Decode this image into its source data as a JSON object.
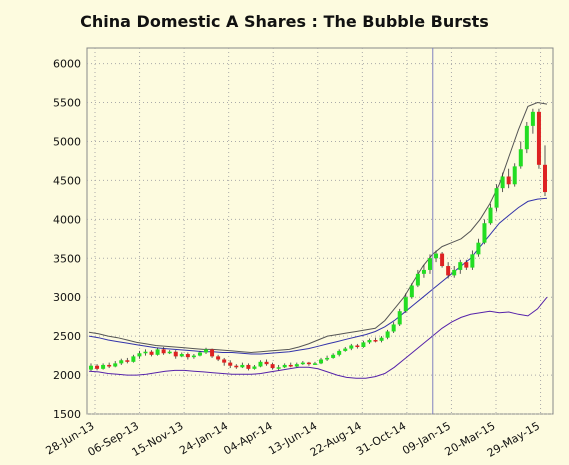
{
  "chart_data": {
    "type": "candlestick",
    "title": "China Domestic A Shares : The Bubble Bursts",
    "xlabel": "",
    "ylabel": "",
    "ylim": [
      1500,
      6200
    ],
    "yticks": [
      1500,
      2000,
      2500,
      3000,
      3500,
      4000,
      4500,
      5000,
      5500,
      6000
    ],
    "xticks": [
      "28-Jun-13",
      "06-Sep-13",
      "15-Nov-13",
      "24-Jan-14",
      "04-Apr-14",
      "13-Jun-14",
      "22-Aug-14",
      "31-Oct-14",
      "09-Jan-15",
      "20-Mar-15",
      "29-May-15"
    ],
    "grid": true,
    "annotation": "vertical line at ~01-Jan-15",
    "colors": {
      "up": "#22dd22",
      "down": "#dd2222",
      "band": "#555555",
      "average": "#3333aa",
      "lower": "#5522aa",
      "marker": "#8080c0"
    },
    "candles_weekly": [
      [
        2070,
        2120,
        2050,
        2150
      ],
      [
        2120,
        2080,
        2060,
        2140
      ],
      [
        2080,
        2130,
        2070,
        2150
      ],
      [
        2130,
        2110,
        2090,
        2160
      ],
      [
        2110,
        2150,
        2100,
        2180
      ],
      [
        2150,
        2190,
        2130,
        2210
      ],
      [
        2190,
        2170,
        2150,
        2220
      ],
      [
        2170,
        2240,
        2160,
        2260
      ],
      [
        2240,
        2280,
        2210,
        2310
      ],
      [
        2280,
        2300,
        2250,
        2330
      ],
      [
        2300,
        2260,
        2240,
        2320
      ],
      [
        2260,
        2330,
        2250,
        2350
      ],
      [
        2330,
        2280,
        2260,
        2360
      ],
      [
        2280,
        2300,
        2270,
        2320
      ],
      [
        2300,
        2240,
        2210,
        2320
      ],
      [
        2240,
        2270,
        2230,
        2290
      ],
      [
        2270,
        2230,
        2200,
        2290
      ],
      [
        2230,
        2250,
        2210,
        2270
      ],
      [
        2250,
        2290,
        2240,
        2310
      ],
      [
        2290,
        2330,
        2270,
        2350
      ],
      [
        2330,
        2240,
        2220,
        2340
      ],
      [
        2240,
        2200,
        2180,
        2260
      ],
      [
        2200,
        2160,
        2120,
        2220
      ],
      [
        2160,
        2120,
        2090,
        2190
      ],
      [
        2120,
        2100,
        2080,
        2140
      ],
      [
        2100,
        2130,
        2090,
        2160
      ],
      [
        2130,
        2080,
        2060,
        2150
      ],
      [
        2080,
        2110,
        2070,
        2130
      ],
      [
        2110,
        2170,
        2100,
        2190
      ],
      [
        2170,
        2140,
        2120,
        2200
      ],
      [
        2140,
        2090,
        2070,
        2160
      ],
      [
        2090,
        2100,
        2060,
        2130
      ],
      [
        2100,
        2130,
        2090,
        2150
      ],
      [
        2130,
        2110,
        2100,
        2160
      ],
      [
        2110,
        2140,
        2100,
        2160
      ],
      [
        2140,
        2160,
        2130,
        2180
      ],
      [
        2160,
        2140,
        2120,
        2170
      ],
      [
        2140,
        2150,
        2130,
        2170
      ],
      [
        2150,
        2200,
        2140,
        2220
      ],
      [
        2200,
        2220,
        2180,
        2250
      ],
      [
        2220,
        2260,
        2210,
        2280
      ],
      [
        2260,
        2310,
        2240,
        2330
      ],
      [
        2310,
        2340,
        2300,
        2360
      ],
      [
        2340,
        2380,
        2320,
        2400
      ],
      [
        2380,
        2360,
        2340,
        2400
      ],
      [
        2360,
        2420,
        2350,
        2440
      ],
      [
        2420,
        2450,
        2400,
        2470
      ],
      [
        2450,
        2440,
        2420,
        2480
      ],
      [
        2440,
        2480,
        2420,
        2500
      ],
      [
        2480,
        2560,
        2460,
        2580
      ],
      [
        2560,
        2650,
        2540,
        2680
      ],
      [
        2650,
        2820,
        2630,
        2850
      ],
      [
        2820,
        3000,
        2800,
        3050
      ],
      [
        3000,
        3150,
        2980,
        3180
      ],
      [
        3150,
        3300,
        3130,
        3350
      ],
      [
        3300,
        3350,
        3250,
        3420
      ],
      [
        3350,
        3500,
        3300,
        3550
      ],
      [
        3500,
        3560,
        3450,
        3600
      ],
      [
        3560,
        3400,
        3380,
        3580
      ],
      [
        3400,
        3280,
        3240,
        3450
      ],
      [
        3280,
        3350,
        3250,
        3400
      ],
      [
        3350,
        3450,
        3300,
        3480
      ],
      [
        3450,
        3380,
        3350,
        3480
      ],
      [
        3380,
        3550,
        3350,
        3600
      ],
      [
        3550,
        3700,
        3520,
        3750
      ],
      [
        3700,
        3950,
        3680,
        4000
      ],
      [
        3950,
        4150,
        3930,
        4200
      ],
      [
        4150,
        4400,
        4100,
        4450
      ],
      [
        4400,
        4550,
        4350,
        4600
      ],
      [
        4550,
        4450,
        4400,
        4650
      ],
      [
        4450,
        4680,
        4420,
        4720
      ],
      [
        4680,
        4900,
        4650,
        5000
      ],
      [
        4900,
        5200,
        4850,
        5250
      ],
      [
        5200,
        5380,
        5100,
        5420
      ],
      [
        5380,
        4700,
        4650,
        5420
      ],
      [
        4700,
        4350,
        4300,
        4950
      ]
    ],
    "band_upper": [
      2550,
      2530,
      2500,
      2480,
      2450,
      2420,
      2400,
      2380,
      2370,
      2360,
      2350,
      2340,
      2330,
      2330,
      2320,
      2310,
      2300,
      2290,
      2300,
      2310,
      2320,
      2330,
      2360,
      2400,
      2450,
      2500,
      2520,
      2540,
      2560,
      2580,
      2600,
      2700,
      2850,
      3000,
      3200,
      3400,
      3550,
      3650,
      3700,
      3750,
      3850,
      4000,
      4200,
      4450,
      4800,
      5150,
      5450,
      5500,
      5480
    ],
    "band_average": [
      2500,
      2480,
      2450,
      2430,
      2410,
      2390,
      2370,
      2350,
      2340,
      2330,
      2320,
      2310,
      2300,
      2300,
      2290,
      2290,
      2280,
      2270,
      2270,
      2280,
      2290,
      2300,
      2320,
      2340,
      2370,
      2400,
      2430,
      2460,
      2490,
      2520,
      2560,
      2620,
      2700,
      2800,
      2900,
      3000,
      3100,
      3200,
      3300,
      3400,
      3500,
      3650,
      3800,
      3950,
      4050,
      4150,
      4230,
      4260,
      4270
    ],
    "band_lower": [
      2050,
      2040,
      2020,
      2010,
      2000,
      2000,
      2010,
      2030,
      2050,
      2060,
      2060,
      2050,
      2040,
      2030,
      2020,
      2010,
      2010,
      2010,
      2020,
      2040,
      2060,
      2080,
      2100,
      2100,
      2080,
      2040,
      2000,
      1970,
      1960,
      1960,
      1980,
      2020,
      2100,
      2200,
      2300,
      2400,
      2500,
      2600,
      2680,
      2740,
      2780,
      2800,
      2820,
      2800,
      2810,
      2780,
      2760,
      2850,
      3000
    ]
  }
}
